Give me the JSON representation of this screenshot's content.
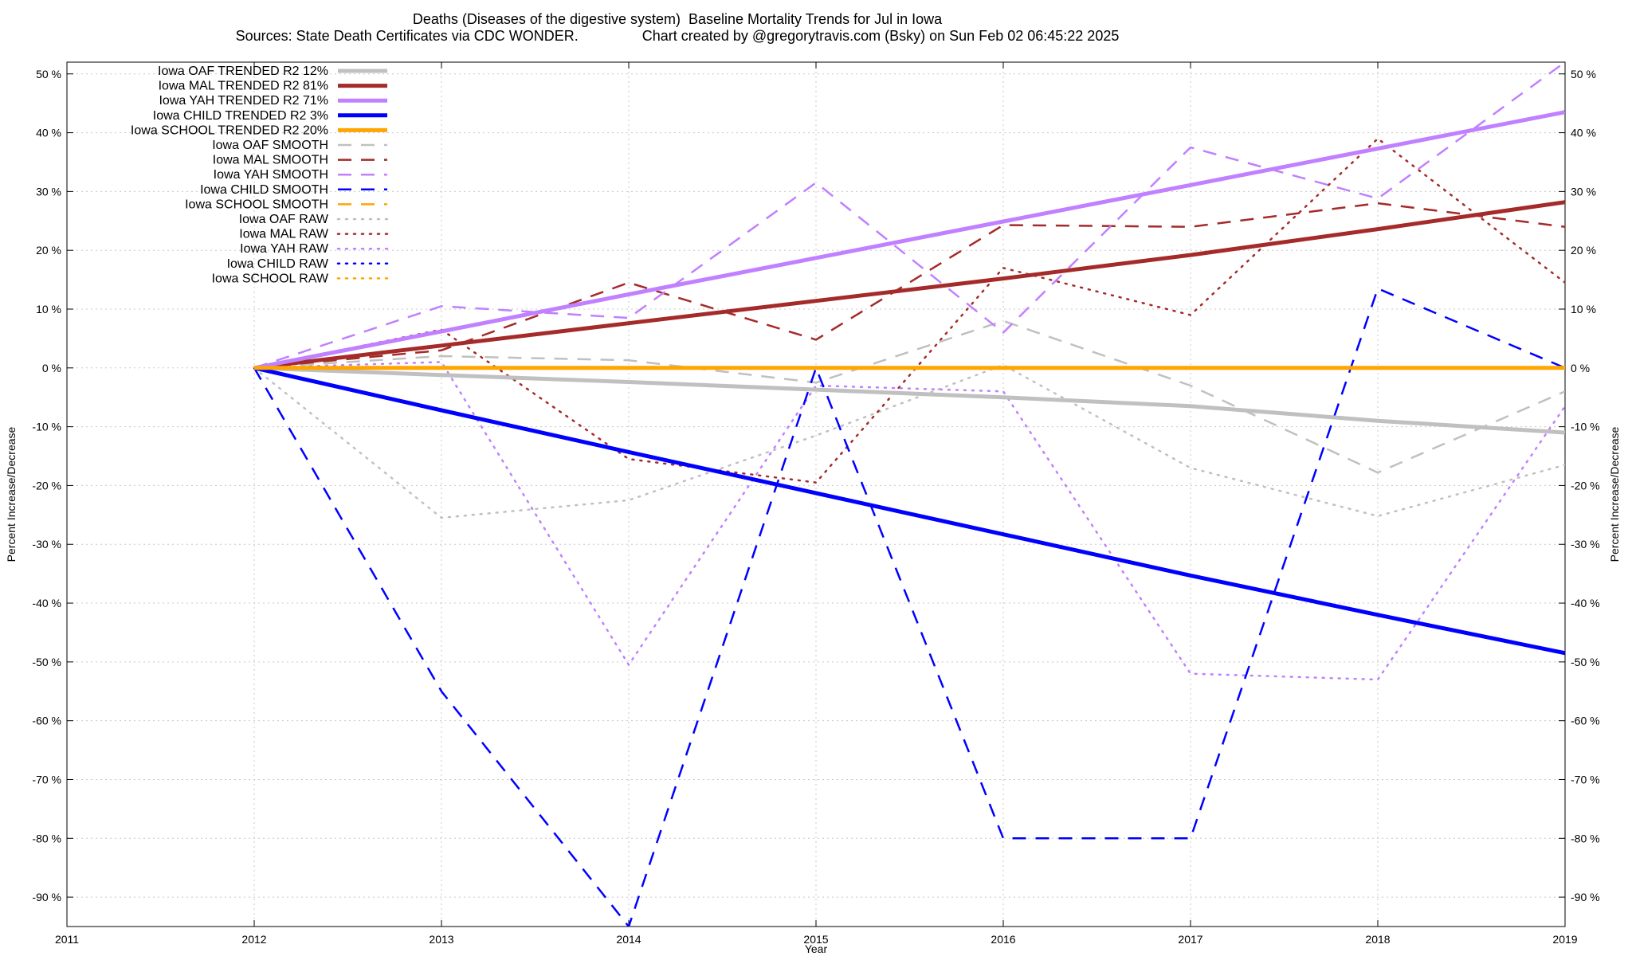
{
  "chart_data": {
    "type": "line",
    "title": "Deaths (Diseases of the digestive system)  Baseline Mortality Trends for Jul in Iowa",
    "subtitle": "Sources: State Death Certificates via CDC WONDER.                Chart created by @gregorytravis.com (Bsky) on Sun Feb 02 06:45:22 2025",
    "xlabel": "Year",
    "ylabel": "Percent Increase/Decrease",
    "y2label": "Percent Increase/Decrease",
    "xlim": [
      2011,
      2019
    ],
    "ylim": [
      -95,
      52
    ],
    "x_ticks": [
      2011,
      2012,
      2013,
      2014,
      2015,
      2016,
      2017,
      2018,
      2019
    ],
    "y_ticks": [
      50,
      40,
      30,
      20,
      10,
      0,
      -10,
      -20,
      -30,
      -40,
      -50,
      -60,
      -70,
      -80,
      -90
    ],
    "y_tick_suffix": " %",
    "grid": true,
    "legend_position": "top-left",
    "series": [
      {
        "name": "Iowa OAF TRENDED R2  12%",
        "color": "#c0c0c0",
        "style": "solid",
        "width": 5,
        "x": [
          2012,
          2013,
          2014,
          2015,
          2016,
          2017,
          2018,
          2019
        ],
        "values": [
          0,
          -1.2,
          -2.4,
          -3.7,
          -5.0,
          -6.5,
          -9.0,
          -11.0
        ]
      },
      {
        "name": "Iowa MAL TRENDED R2  81%",
        "color": "#a52a2a",
        "style": "solid",
        "width": 5,
        "x": [
          2012,
          2013,
          2014,
          2015,
          2016,
          2017,
          2018,
          2019
        ],
        "values": [
          0,
          3.8,
          7.6,
          11.4,
          15.2,
          19.2,
          23.6,
          28.2
        ]
      },
      {
        "name": "Iowa YAH TRENDED R2  71%",
        "color": "#c080ff",
        "style": "solid",
        "width": 5,
        "x": [
          2012,
          2013,
          2014,
          2015,
          2016,
          2017,
          2018,
          2019
        ],
        "values": [
          0,
          6.2,
          12.5,
          18.7,
          24.9,
          31.1,
          37.3,
          43.5
        ]
      },
      {
        "name": "Iowa CHILD TRENDED R2   3%",
        "color": "#0000ff",
        "style": "solid",
        "width": 5,
        "x": [
          2012,
          2013,
          2014,
          2015,
          2016,
          2017,
          2018,
          2019
        ],
        "values": [
          0,
          -7.2,
          -14.3,
          -21.3,
          -28.3,
          -35.3,
          -42.0,
          -48.5
        ]
      },
      {
        "name": "Iowa SCHOOL TRENDED R2  20%",
        "color": "#ffa500",
        "style": "solid",
        "width": 5,
        "x": [
          2012,
          2013,
          2014,
          2015,
          2016,
          2017,
          2018,
          2019
        ],
        "values": [
          0,
          0,
          0,
          0,
          0,
          0,
          0,
          0
        ]
      },
      {
        "name": "Iowa OAF SMOOTH",
        "color": "#c0c0c0",
        "style": "dashed",
        "width": 2.5,
        "x": [
          2012,
          2013,
          2014,
          2015,
          2016,
          2017,
          2018,
          2019
        ],
        "values": [
          0,
          2.0,
          1.3,
          -2.5,
          8.0,
          -3.0,
          -17.8,
          -4.0
        ]
      },
      {
        "name": "Iowa MAL SMOOTH",
        "color": "#a52a2a",
        "style": "dashed",
        "width": 2.5,
        "x": [
          2012,
          2013,
          2014,
          2015,
          2016,
          2017,
          2018,
          2019
        ],
        "values": [
          0,
          3.0,
          14.5,
          4.8,
          24.3,
          24.0,
          28.0,
          24.0
        ]
      },
      {
        "name": "Iowa YAH SMOOTH",
        "color": "#c080ff",
        "style": "dashed",
        "width": 2.5,
        "x": [
          2012,
          2013,
          2014,
          2015,
          2016,
          2017,
          2018,
          2019
        ],
        "values": [
          0,
          10.5,
          8.5,
          31.5,
          6.0,
          37.5,
          28.8,
          52.0
        ]
      },
      {
        "name": "Iowa CHILD SMOOTH",
        "color": "#0000ff",
        "style": "dashed",
        "width": 2.5,
        "x": [
          2012,
          2013,
          2014,
          2015,
          2016,
          2017,
          2018,
          2019
        ],
        "values": [
          0,
          -55.0,
          -95.0,
          0,
          -80.0,
          -80.0,
          13.5,
          0
        ]
      },
      {
        "name": "Iowa SCHOOL SMOOTH",
        "color": "#ffa500",
        "style": "dashed",
        "width": 2.5,
        "x": [
          2012,
          2013,
          2014,
          2015,
          2016,
          2017,
          2018,
          2019
        ],
        "values": [
          0,
          0,
          0,
          0,
          0,
          0,
          0,
          0
        ]
      },
      {
        "name": "Iowa OAF RAW",
        "color": "#c0c0c0",
        "style": "dotted",
        "width": 2.5,
        "x": [
          2012,
          2013,
          2014,
          2015,
          2016,
          2017,
          2018,
          2019
        ],
        "values": [
          0,
          -25.5,
          -22.5,
          -11.5,
          0.5,
          -17.0,
          -25.2,
          -16.5
        ]
      },
      {
        "name": "Iowa MAL RAW",
        "color": "#a52a2a",
        "style": "dotted",
        "width": 2.5,
        "x": [
          2012,
          2013,
          2014,
          2015,
          2016,
          2017,
          2018,
          2019
        ],
        "values": [
          0,
          6.5,
          -15.5,
          -19.5,
          17.0,
          9.0,
          39.0,
          14.5
        ]
      },
      {
        "name": "Iowa YAH RAW",
        "color": "#c080ff",
        "style": "dotted",
        "width": 2.5,
        "x": [
          2012,
          2013,
          2014,
          2015,
          2016,
          2017,
          2018,
          2019
        ],
        "values": [
          0,
          1.0,
          -50.5,
          -3.0,
          -4.0,
          -52.0,
          -53.0,
          -6.5
        ]
      },
      {
        "name": "Iowa CHILD RAW",
        "color": "#0000ff",
        "style": "dotted",
        "width": 2.5,
        "x": [
          2012,
          2013,
          2014,
          2015,
          2016,
          2017,
          2018,
          2019
        ],
        "values": [
          0,
          0,
          0,
          0,
          0,
          0,
          0,
          0
        ]
      },
      {
        "name": "Iowa SCHOOL RAW",
        "color": "#ffa500",
        "style": "dotted",
        "width": 2.5,
        "x": [
          2012,
          2013,
          2014,
          2015,
          2016,
          2017,
          2018,
          2019
        ],
        "values": [
          0,
          0,
          0,
          0,
          0,
          0,
          0,
          0
        ]
      }
    ]
  }
}
